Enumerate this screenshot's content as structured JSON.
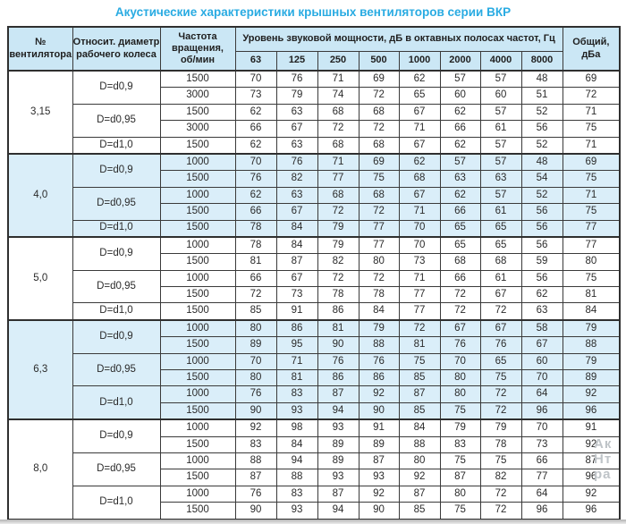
{
  "title": "Акустические характеристики крышных вентиляторов серии ВКР",
  "colors": {
    "title_accent": "#29abe2",
    "header_bg": "#cbe7f5",
    "highlight_row_bg": "#daeef9",
    "border": "#2f2f2f"
  },
  "watermark_fragments": [
    "Ак",
    "Нт",
    "ра"
  ],
  "table": {
    "headers": {
      "fan_no": "№\nвентилятора",
      "diameter": "Относит. диаметр\nрабочего колеса",
      "speed": "Частота\nвращения,\nоб/мин",
      "spl_group": "Уровень звуковой мощности, дБ в октавных полосах частот, Гц",
      "frequencies": [
        "63",
        "125",
        "250",
        "500",
        "1000",
        "2000",
        "4000",
        "8000"
      ],
      "total": "Общий,\nдБа"
    },
    "sections": [
      {
        "fan": "3,15",
        "highlight": false,
        "groups": [
          {
            "diameter": "D=d0,9",
            "rows": [
              {
                "speed": "1500",
                "values": [
                  70,
                  76,
                  71,
                  69,
                  62,
                  57,
                  57,
                  48
                ],
                "total": 69
              },
              {
                "speed": "3000",
                "values": [
                  73,
                  79,
                  74,
                  72,
                  65,
                  60,
                  60,
                  51
                ],
                "total": 72
              }
            ]
          },
          {
            "diameter": "D=d0,95",
            "rows": [
              {
                "speed": "1500",
                "values": [
                  62,
                  63,
                  68,
                  68,
                  67,
                  62,
                  57,
                  52
                ],
                "total": 71
              },
              {
                "speed": "3000",
                "values": [
                  66,
                  67,
                  72,
                  72,
                  71,
                  66,
                  61,
                  56
                ],
                "total": 75
              }
            ]
          },
          {
            "diameter": "D=d1,0",
            "rows": [
              {
                "speed": "1500",
                "values": [
                  62,
                  63,
                  68,
                  68,
                  67,
                  62,
                  57,
                  52
                ],
                "total": 71
              }
            ]
          }
        ]
      },
      {
        "fan": "4,0",
        "highlight": true,
        "groups": [
          {
            "diameter": "D=d0,9",
            "rows": [
              {
                "speed": "1000",
                "values": [
                  70,
                  76,
                  71,
                  69,
                  62,
                  57,
                  57,
                  48
                ],
                "total": 69
              },
              {
                "speed": "1500",
                "values": [
                  76,
                  82,
                  77,
                  75,
                  68,
                  63,
                  63,
                  54
                ],
                "total": 75
              }
            ]
          },
          {
            "diameter": "D=d0,95",
            "rows": [
              {
                "speed": "1000",
                "values": [
                  62,
                  63,
                  68,
                  68,
                  67,
                  62,
                  57,
                  52
                ],
                "total": 71
              },
              {
                "speed": "1500",
                "values": [
                  66,
                  67,
                  72,
                  72,
                  71,
                  66,
                  61,
                  56
                ],
                "total": 75
              }
            ]
          },
          {
            "diameter": "D=d1,0",
            "rows": [
              {
                "speed": "1500",
                "values": [
                  78,
                  84,
                  79,
                  77,
                  70,
                  65,
                  65,
                  56
                ],
                "total": 77
              }
            ]
          }
        ]
      },
      {
        "fan": "5,0",
        "highlight": false,
        "groups": [
          {
            "diameter": "D=d0,9",
            "rows": [
              {
                "speed": "1000",
                "values": [
                  78,
                  84,
                  79,
                  77,
                  70,
                  65,
                  65,
                  56
                ],
                "total": 77
              },
              {
                "speed": "1500",
                "values": [
                  81,
                  87,
                  82,
                  80,
                  73,
                  68,
                  68,
                  59
                ],
                "total": 80
              }
            ]
          },
          {
            "diameter": "D=d0,95",
            "rows": [
              {
                "speed": "1000",
                "values": [
                  66,
                  67,
                  72,
                  72,
                  71,
                  66,
                  61,
                  56
                ],
                "total": 75
              },
              {
                "speed": "1500",
                "values": [
                  72,
                  73,
                  78,
                  78,
                  77,
                  72,
                  67,
                  62
                ],
                "total": 81
              }
            ]
          },
          {
            "diameter": "D=d1,0",
            "rows": [
              {
                "speed": "1500",
                "values": [
                  85,
                  91,
                  86,
                  84,
                  77,
                  72,
                  72,
                  63
                ],
                "total": 84
              }
            ]
          }
        ]
      },
      {
        "fan": "6,3",
        "highlight": true,
        "groups": [
          {
            "diameter": "D=d0,9",
            "rows": [
              {
                "speed": "1000",
                "values": [
                  80,
                  86,
                  81,
                  79,
                  72,
                  67,
                  67,
                  58
                ],
                "total": 79
              },
              {
                "speed": "1500",
                "values": [
                  89,
                  95,
                  90,
                  88,
                  81,
                  76,
                  76,
                  67
                ],
                "total": 88
              }
            ]
          },
          {
            "diameter": "D=d0,95",
            "rows": [
              {
                "speed": "1000",
                "values": [
                  70,
                  71,
                  76,
                  76,
                  75,
                  70,
                  65,
                  60
                ],
                "total": 79
              },
              {
                "speed": "1500",
                "values": [
                  80,
                  81,
                  86,
                  86,
                  85,
                  80,
                  75,
                  70
                ],
                "total": 89
              }
            ]
          },
          {
            "diameter": "D=d1,0",
            "rows": [
              {
                "speed": "1000",
                "values": [
                  76,
                  83,
                  87,
                  92,
                  87,
                  80,
                  72,
                  64
                ],
                "total": 92
              },
              {
                "speed": "1500",
                "values": [
                  90,
                  93,
                  94,
                  90,
                  85,
                  75,
                  72,
                  96
                ],
                "total": 96
              }
            ]
          }
        ]
      },
      {
        "fan": "8,0",
        "highlight": false,
        "groups": [
          {
            "diameter": "D=d0,9",
            "rows": [
              {
                "speed": "1000",
                "values": [
                  92,
                  98,
                  93,
                  91,
                  84,
                  79,
                  79,
                  70
                ],
                "total": 91
              },
              {
                "speed": "1500",
                "values": [
                  83,
                  84,
                  89,
                  89,
                  88,
                  83,
                  78,
                  73
                ],
                "total": 92
              }
            ]
          },
          {
            "diameter": "D=d0,95",
            "rows": [
              {
                "speed": "1000",
                "values": [
                  88,
                  94,
                  89,
                  87,
                  80,
                  75,
                  75,
                  66
                ],
                "total": 87
              },
              {
                "speed": "1500",
                "values": [
                  87,
                  88,
                  93,
                  93,
                  92,
                  87,
                  82,
                  77
                ],
                "total": 96
              }
            ]
          },
          {
            "diameter": "D=d1,0",
            "rows": [
              {
                "speed": "1000",
                "values": [
                  76,
                  83,
                  87,
                  92,
                  87,
                  80,
                  72,
                  64
                ],
                "total": 92
              },
              {
                "speed": "1500",
                "values": [
                  90,
                  93,
                  94,
                  90,
                  85,
                  75,
                  72,
                  96
                ],
                "total": 96
              }
            ]
          }
        ]
      }
    ]
  }
}
